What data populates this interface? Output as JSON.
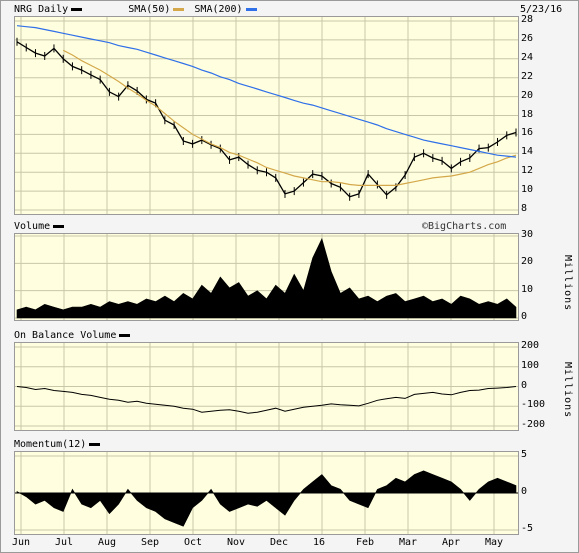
{
  "header": {
    "symbol_label": "NRG Daily",
    "sma50_label": "SMA(50)",
    "sma200_label": "SMA(200)",
    "date": "5/23/16",
    "watermark": "©BigCharts.com"
  },
  "colors": {
    "price": "#000000",
    "sma50": "#d4a84a",
    "sma200": "#2f6fe8",
    "plot_bg": "#ffffe0"
  },
  "chart_data": [
    {
      "type": "line",
      "title": "NRG Daily",
      "x_ticks": [
        "Jun",
        "Jul",
        "Aug",
        "Sep",
        "Oct",
        "Nov",
        "Dec",
        "16",
        "Feb",
        "Mar",
        "Apr",
        "May"
      ],
      "ylim": [
        8,
        28
      ],
      "y_ticks": [
        8,
        10,
        12,
        14,
        16,
        18,
        20,
        22,
        24,
        26,
        28
      ],
      "series": [
        {
          "name": "NRG Daily",
          "values": [
            25.8,
            25.2,
            24.6,
            24.3,
            25.1,
            24.0,
            23.2,
            22.8,
            22.3,
            21.8,
            20.5,
            20.0,
            21.2,
            20.6,
            19.7,
            19.3,
            17.5,
            17.0,
            15.3,
            15.0,
            15.4,
            14.9,
            14.5,
            13.3,
            13.6,
            12.8,
            12.2,
            12.0,
            11.4,
            9.7,
            10.0,
            10.9,
            11.8,
            11.6,
            10.8,
            10.4,
            9.4,
            9.7,
            11.8,
            10.7,
            9.6,
            10.4,
            11.7,
            13.6,
            14.0,
            13.5,
            13.2,
            12.4,
            13.1,
            13.5,
            14.5,
            14.6,
            15.2,
            15.9,
            16.2
          ]
        },
        {
          "name": "SMA(50)",
          "values": [
            null,
            null,
            null,
            null,
            null,
            24.9,
            24.4,
            23.8,
            23.3,
            22.8,
            22.2,
            21.6,
            20.9,
            20.3,
            19.6,
            19.0,
            18.2,
            17.4,
            16.7,
            16.0,
            15.5,
            15.0,
            14.6,
            14.1,
            13.8,
            13.4,
            13.0,
            12.5,
            12.2,
            11.9,
            11.6,
            11.4,
            11.2,
            11.0,
            11.0,
            10.9,
            10.7,
            10.6,
            10.6,
            10.6,
            10.6,
            10.6,
            10.8,
            11.0,
            11.2,
            11.4,
            11.5,
            11.6,
            11.8,
            12.0,
            12.4,
            12.8,
            13.1,
            13.5,
            13.8
          ]
        },
        {
          "name": "SMA(200)",
          "values": [
            27.5,
            27.4,
            27.3,
            27.1,
            26.9,
            26.7,
            26.5,
            26.3,
            26.1,
            25.9,
            25.7,
            25.4,
            25.2,
            25.0,
            24.7,
            24.4,
            24.1,
            23.8,
            23.5,
            23.2,
            22.8,
            22.5,
            22.1,
            21.8,
            21.4,
            21.1,
            20.8,
            20.5,
            20.2,
            19.9,
            19.6,
            19.3,
            19.1,
            18.8,
            18.5,
            18.2,
            17.9,
            17.6,
            17.3,
            17.0,
            16.6,
            16.3,
            16.0,
            15.7,
            15.4,
            15.2,
            15.0,
            14.8,
            14.6,
            14.4,
            14.2,
            14.0,
            13.8,
            13.7,
            13.6
          ]
        }
      ]
    },
    {
      "type": "area",
      "title": "Volume",
      "ylabel": "Millions",
      "ylim": [
        0,
        30
      ],
      "y_ticks": [
        0,
        10,
        20,
        30
      ],
      "series": [
        {
          "name": "Volume",
          "values": [
            3,
            4,
            3,
            5,
            4,
            3,
            4,
            4,
            5,
            4,
            6,
            5,
            6,
            5,
            7,
            6,
            8,
            6,
            9,
            7,
            12,
            9,
            15,
            11,
            13,
            8,
            10,
            7,
            12,
            9,
            16,
            10,
            22,
            29,
            17,
            9,
            11,
            7,
            8,
            6,
            8,
            9,
            6,
            7,
            8,
            6,
            7,
            5,
            8,
            7,
            5,
            6,
            5,
            7,
            4
          ]
        }
      ]
    },
    {
      "type": "line",
      "title": "On Balance Volume",
      "ylabel": "Millions",
      "ylim": [
        -200,
        200
      ],
      "y_ticks": [
        -200,
        -100,
        0,
        100,
        200
      ],
      "series": [
        {
          "name": "On Balance Volume",
          "values": [
            0,
            -5,
            -15,
            -10,
            -20,
            -25,
            -30,
            -40,
            -45,
            -55,
            -65,
            -70,
            -80,
            -75,
            -85,
            -90,
            -95,
            -100,
            -110,
            -115,
            -130,
            -125,
            -120,
            -118,
            -125,
            -135,
            -130,
            -120,
            -110,
            -125,
            -115,
            -105,
            -100,
            -95,
            -88,
            -92,
            -95,
            -98,
            -85,
            -70,
            -62,
            -55,
            -60,
            -40,
            -35,
            -30,
            -38,
            -42,
            -30,
            -20,
            -18,
            -10,
            -8,
            -5,
            0
          ]
        }
      ]
    },
    {
      "type": "area",
      "title": "Momentum(12)",
      "ylim": [
        -5,
        5
      ],
      "y_ticks": [
        -5,
        0,
        5
      ],
      "series": [
        {
          "name": "Momentum(12)",
          "values": [
            0.2,
            -0.5,
            -1.5,
            -1.0,
            -2.0,
            -2.5,
            0.5,
            -1.5,
            -2.0,
            -1.0,
            -2.8,
            -1.5,
            0.5,
            -1.0,
            -2.0,
            -2.5,
            -3.5,
            -4.0,
            -4.5,
            -2.0,
            -1.0,
            0.5,
            -1.5,
            -2.5,
            -2.0,
            -1.5,
            -1.8,
            -1.0,
            -2.0,
            -3.0,
            -1.0,
            0.5,
            1.5,
            2.5,
            1.0,
            0.5,
            -1.0,
            -1.5,
            -2.0,
            0.5,
            1.0,
            2.0,
            1.5,
            2.5,
            3.0,
            2.5,
            2.0,
            1.5,
            0.5,
            -1.0,
            0.5,
            1.5,
            2.0,
            1.5,
            1.0
          ]
        }
      ]
    }
  ]
}
